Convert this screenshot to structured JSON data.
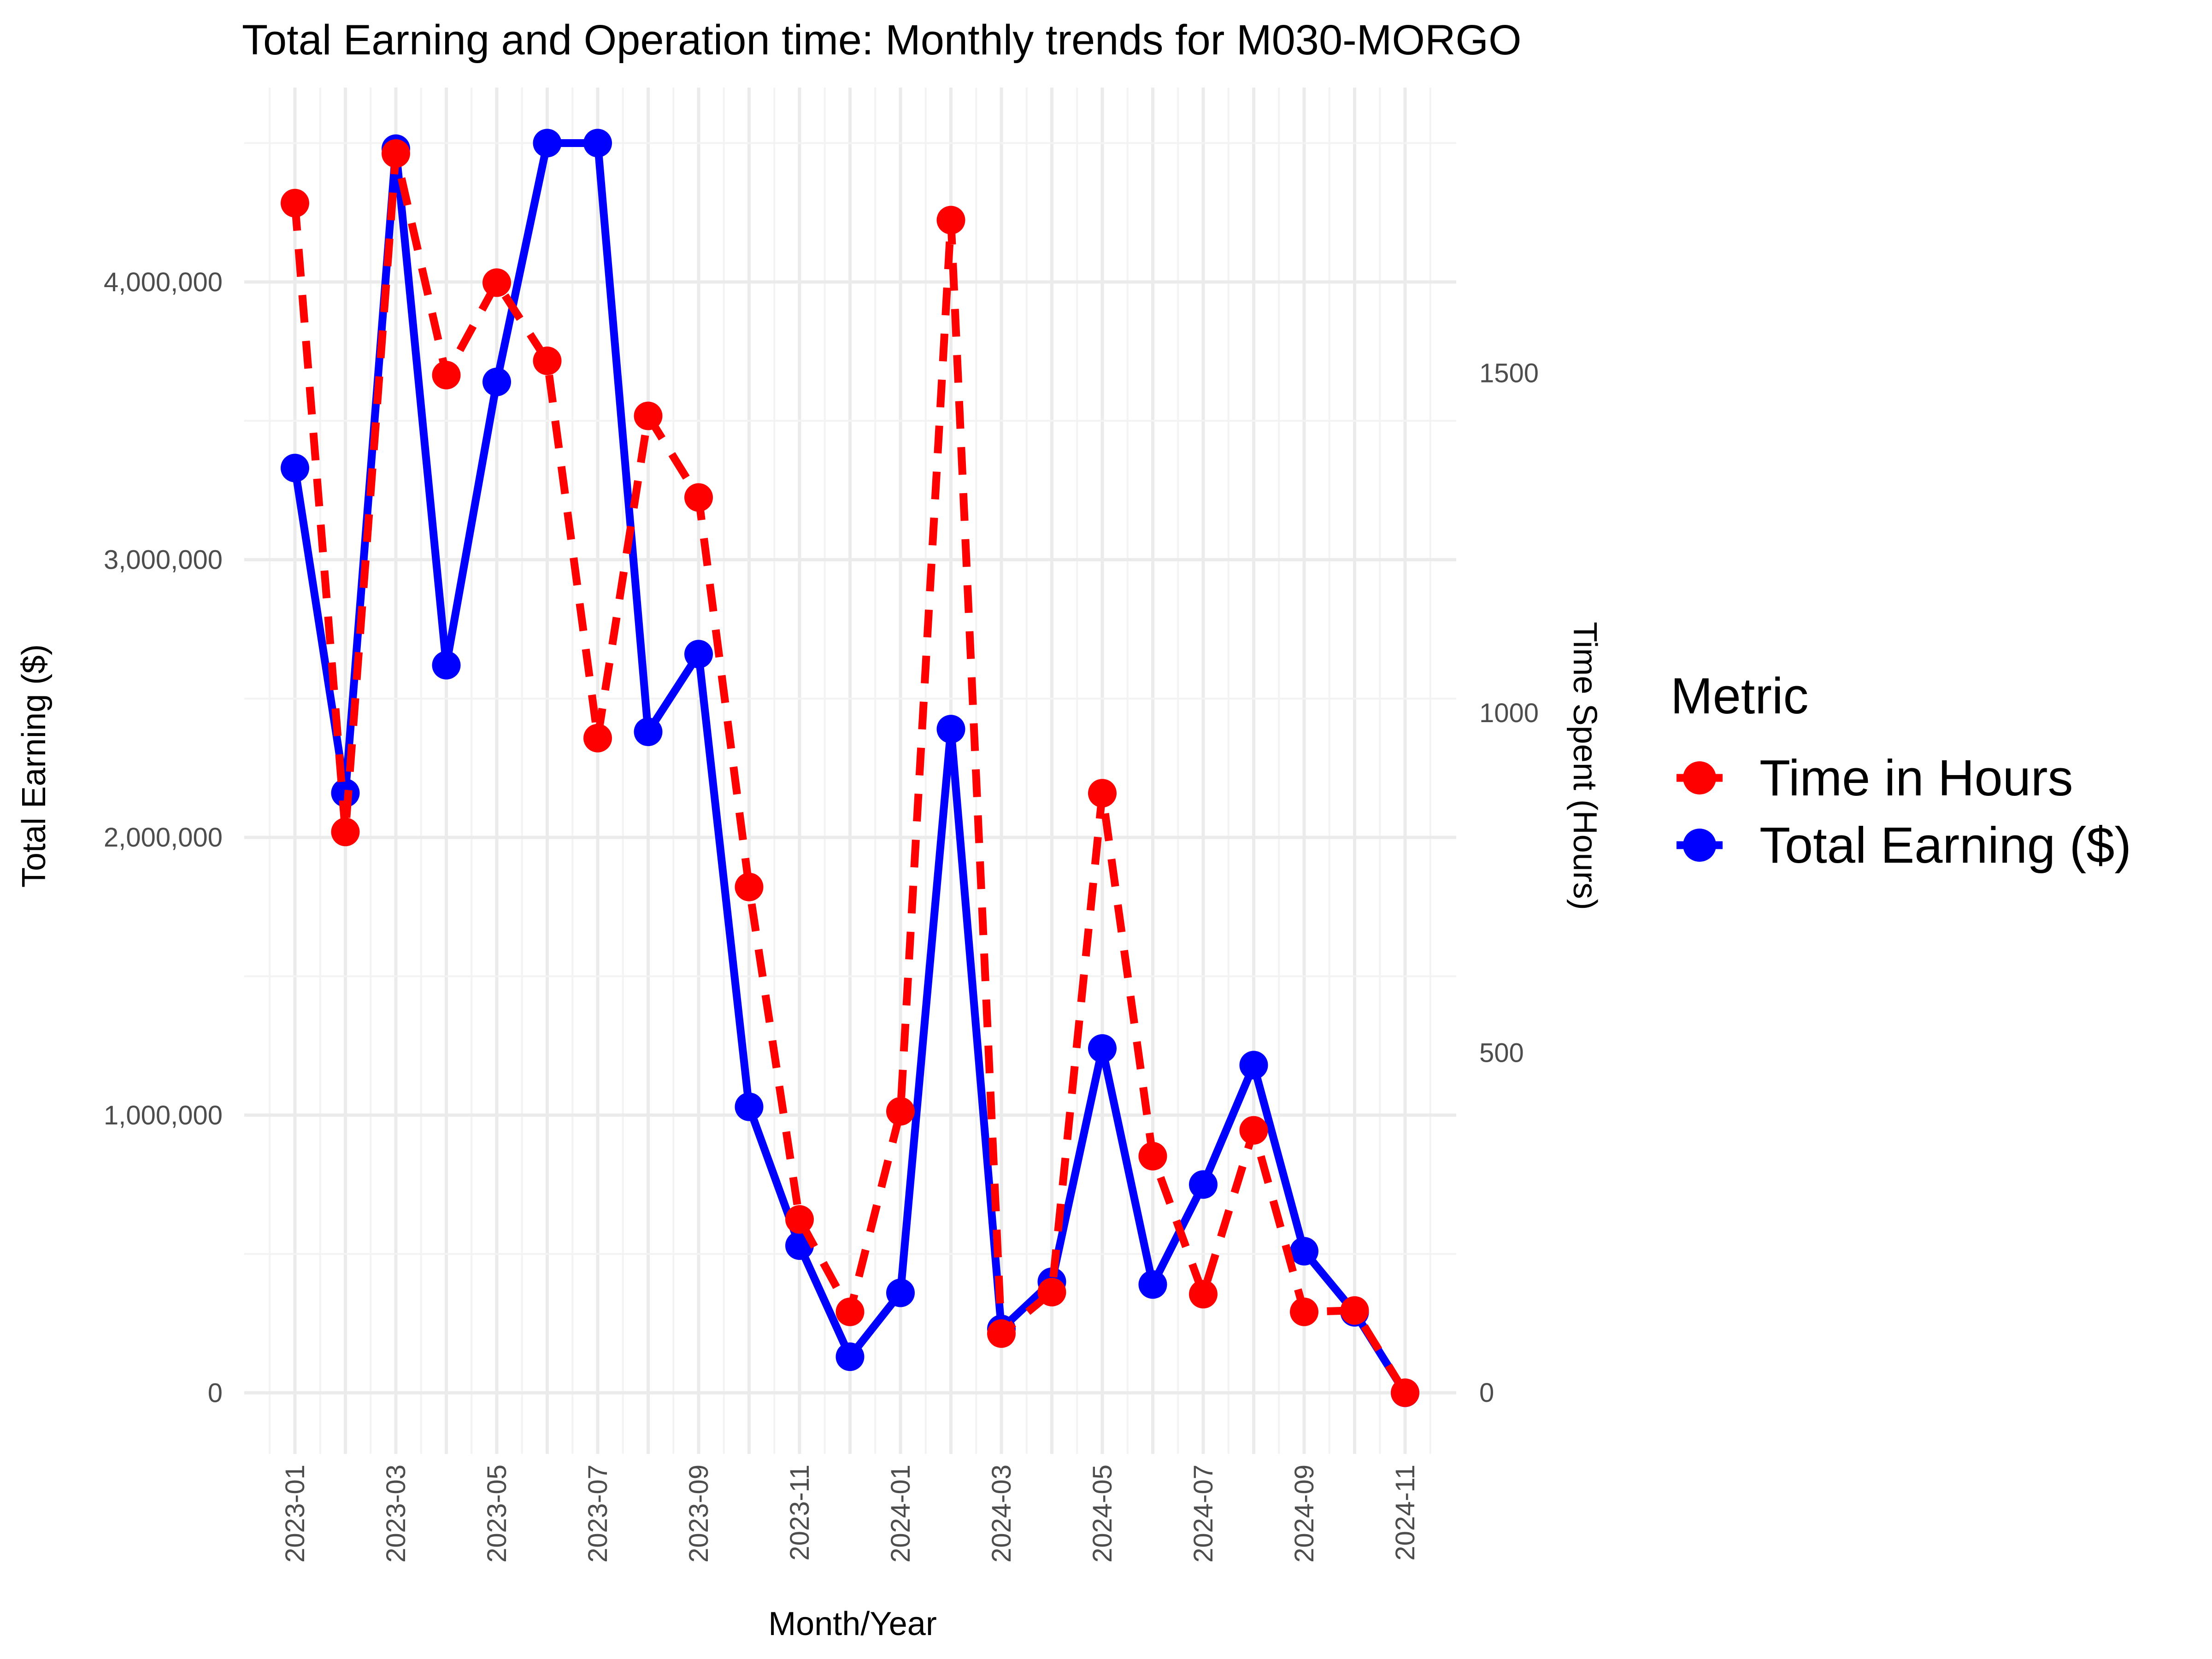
{
  "chart_data": {
    "type": "line",
    "title": "Total Earning and Operation time: Monthly trends for M030-MORGO",
    "xlabel": "Month/Year",
    "ylabel": "Total Earning ($)",
    "y2label": "Time Spent (Hours)",
    "x": [
      "2023-01",
      "2023-02",
      "2023-03",
      "2023-04",
      "2023-05",
      "2023-06",
      "2023-07",
      "2023-08",
      "2023-09",
      "2023-10",
      "2023-11",
      "2023-12",
      "2024-01",
      "2024-02",
      "2024-03",
      "2024-04",
      "2024-05",
      "2024-06",
      "2024-07",
      "2024-08",
      "2024-09",
      "2024-10",
      "2024-11"
    ],
    "x_tick_labels": [
      "2023-01",
      "2023-03",
      "2023-05",
      "2023-07",
      "2023-09",
      "2023-11",
      "2024-01",
      "2024-03",
      "2024-05",
      "2024-07",
      "2024-09",
      "2024-11"
    ],
    "ylim": [
      -220000,
      4700000
    ],
    "y_ticks": [
      0,
      1000000,
      2000000,
      3000000,
      4000000
    ],
    "y_tick_labels": [
      "0",
      "1,000,000",
      "2,000,000",
      "3,000,000",
      "4,000,000"
    ],
    "y2lim": [
      -90,
      1920
    ],
    "y2_ticks": [
      0,
      500,
      1000,
      1500
    ],
    "y2_tick_labels": [
      "0",
      "500",
      "1000",
      "1500"
    ],
    "grid": true,
    "legend": {
      "title": "Metric",
      "position": "right"
    },
    "series": [
      {
        "name": "Time in Hours",
        "axis": "right",
        "color": "#ff0000",
        "line_style": "dashed",
        "values": [
          1750,
          825,
          1823,
          1497,
          1633,
          1518,
          963,
          1437,
          1317,
          744,
          255,
          119,
          414,
          1725,
          87,
          148,
          882,
          348,
          145,
          386,
          119,
          121,
          0
        ]
      },
      {
        "name": "Total Earning ($)",
        "axis": "left",
        "color": "#0000ff",
        "line_style": "solid",
        "values": [
          3330000,
          2160000,
          4480000,
          2620000,
          3640000,
          4500000,
          4500000,
          2380000,
          2660000,
          1030000,
          530000,
          130000,
          360000,
          2390000,
          230000,
          400000,
          1240000,
          390000,
          750000,
          1180000,
          510000,
          290000,
          0
        ]
      }
    ]
  }
}
